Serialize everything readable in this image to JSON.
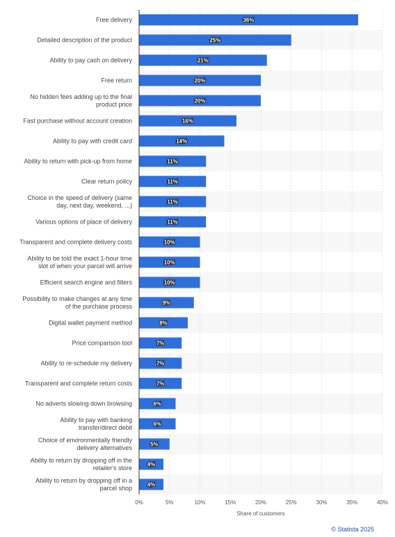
{
  "chart_data": {
    "type": "bar",
    "orientation": "horizontal",
    "categories": [
      [
        "Free delivery"
      ],
      [
        "Detailed description of the product"
      ],
      [
        "Ability to pay cash on delivery"
      ],
      [
        "Free return"
      ],
      [
        "No hidden fees adding up to the final",
        "product price"
      ],
      [
        "Fast purchase without account creation"
      ],
      [
        "Ability to pay with credit card"
      ],
      [
        "Ability to return with pick-up from home"
      ],
      [
        "Clear return policy"
      ],
      [
        "Choice in the speed of delivery (same",
        "day, next day, weekend, ...)"
      ],
      [
        "Various options of place of delivery"
      ],
      [
        "Transparent and complete delivery costs"
      ],
      [
        "Ability to be told the exact 1-hour time",
        "slot of when your parcel will arrive"
      ],
      [
        "Efficient search engine and filters"
      ],
      [
        "Possibility to make changes at any time",
        "of the purchase process"
      ],
      [
        "Digital wallet payment method"
      ],
      [
        "Price comparison tool"
      ],
      [
        "Ability to re-schedule my delivery"
      ],
      [
        "Transparent and complete return costs"
      ],
      [
        "No adverts slowing down browsing"
      ],
      [
        "Ability to pay with banking",
        "transfer/direct debit"
      ],
      [
        "Choice of environmentally friendly",
        "delivery alternatives"
      ],
      [
        "Ability to return by dropping off in the",
        "retailer's store"
      ],
      [
        "Ability to return by dropping off in a",
        "parcel shop"
      ]
    ],
    "values": [
      36,
      25,
      21,
      20,
      20,
      16,
      14,
      11,
      11,
      11,
      11,
      10,
      10,
      10,
      9,
      8,
      7,
      7,
      7,
      6,
      6,
      5,
      4,
      4
    ],
    "value_labels": [
      "36%",
      "25%",
      "21%",
      "20%",
      "20%",
      "16%",
      "14%",
      "11%",
      "11%",
      "11%",
      "11%",
      "10%",
      "10%",
      "10%",
      "9%",
      "8%",
      "7%",
      "7%",
      "7%",
      "6%",
      "6%",
      "5%",
      "4%",
      "4%"
    ],
    "xlabel": "Share of customers",
    "xlim": [
      0,
      40
    ],
    "xticks": [
      0,
      5,
      10,
      15,
      20,
      25,
      30,
      35,
      40
    ],
    "xtick_labels": [
      "0%",
      "5%",
      "10%",
      "15%",
      "20%",
      "25%",
      "30%",
      "35%",
      "40%"
    ],
    "grid": true,
    "bar_color": "#2f6fdc",
    "band_color": "#f7f7f7"
  },
  "credit": "© Statista 2025"
}
